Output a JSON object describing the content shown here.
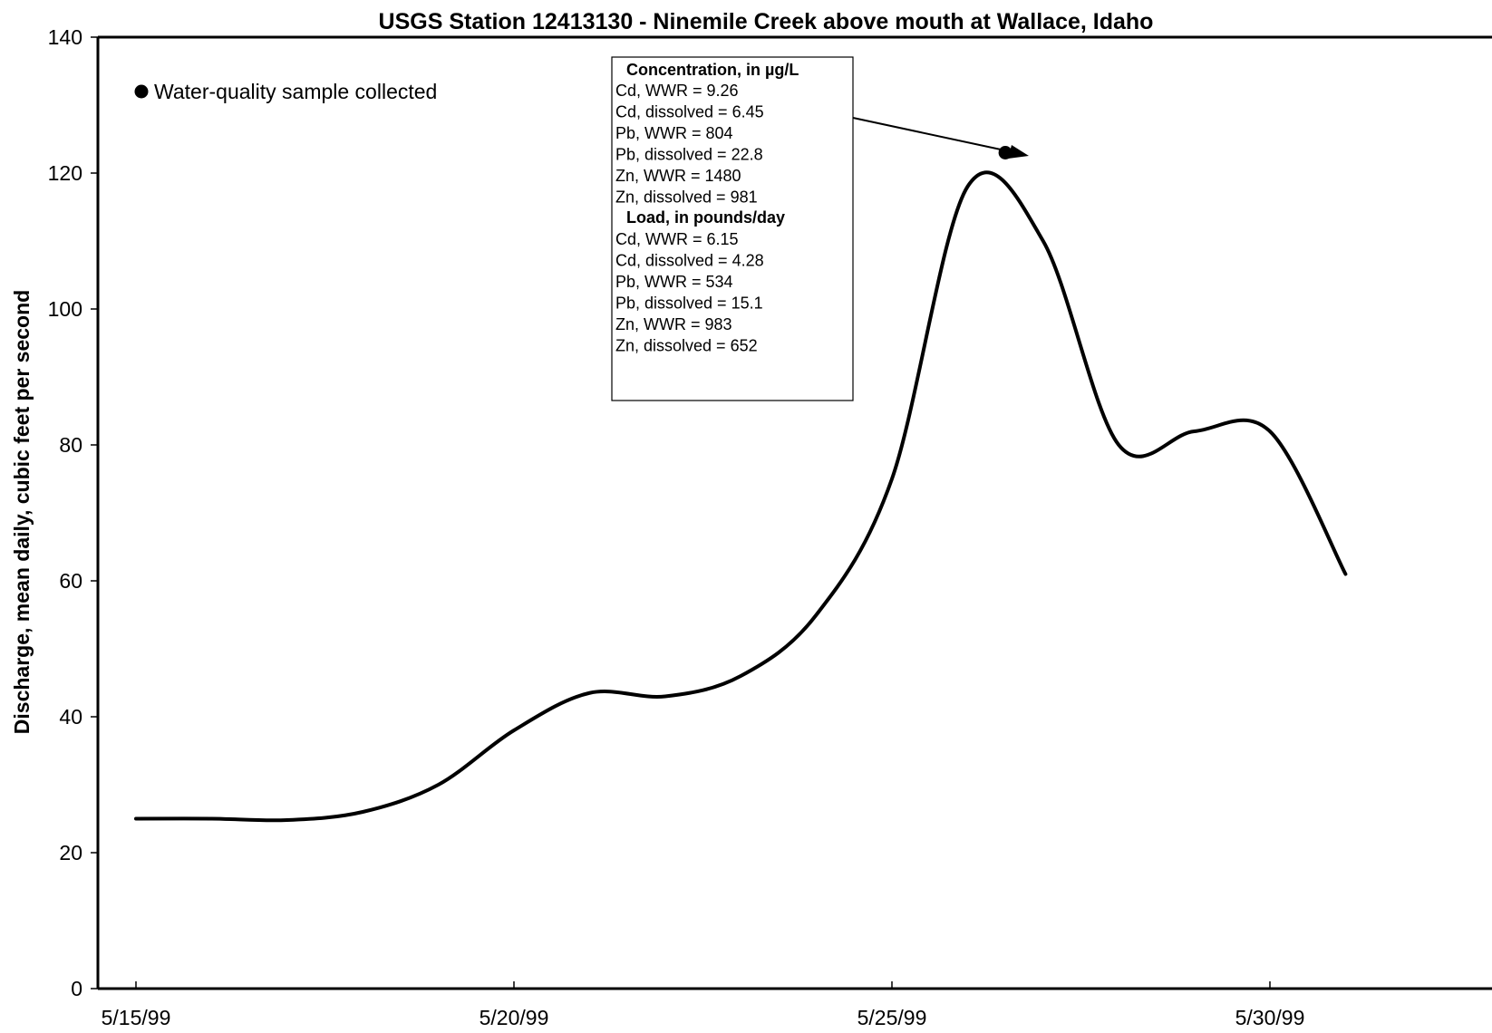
{
  "chart_data": {
    "type": "line",
    "title": "USGS Station 12413130 - Ninemile Creek above mouth at Wallace, Idaho",
    "xlabel": "",
    "ylabel": "Discharge, mean daily, cubic feet per second",
    "xlim": [
      "5/15/99",
      "5/31/99"
    ],
    "ylim": [
      0,
      140
    ],
    "yticks": [
      "0",
      "20",
      "40",
      "60",
      "80",
      "100",
      "120",
      "140"
    ],
    "xticks": [
      "5/15/99",
      "5/20/99",
      "5/25/99",
      "5/30/99"
    ],
    "grid": false,
    "series": [
      {
        "values": [
          {
            "x": "5/15/99",
            "y": 25
          },
          {
            "x": "5/16/99",
            "y": 25
          },
          {
            "x": "5/17/99",
            "y": 24.8
          },
          {
            "x": "5/18/99",
            "y": 26
          },
          {
            "x": "5/19/99",
            "y": 30
          },
          {
            "x": "5/20/99",
            "y": 38
          },
          {
            "x": "5/21/99",
            "y": 43.5
          },
          {
            "x": "5/22/99",
            "y": 43
          },
          {
            "x": "5/23/99",
            "y": 46
          },
          {
            "x": "5/24/99",
            "y": 55
          },
          {
            "x": "5/25/99",
            "y": 75
          },
          {
            "x": "5/26/99",
            "y": 118
          },
          {
            "x": "5/27/99",
            "y": 110
          },
          {
            "x": "5/28/99",
            "y": 80
          },
          {
            "x": "5/29/99",
            "y": 82
          },
          {
            "x": "5/30/99",
            "y": 82
          },
          {
            "x": "5/31/99",
            "y": 61
          }
        ]
      }
    ],
    "sample_points": [
      {
        "x": "5/26/99 12:00",
        "y": 123
      }
    ],
    "legend": {
      "label": "Water-quality sample collected",
      "placement": "top-left"
    },
    "annotation": {
      "concentration_heading": "Concentration, in µg/L",
      "concentration_lines": [
        "Cd, WWR = 9.26",
        "Cd, dissolved = 6.45",
        "Pb, WWR = 804",
        "Pb, dissolved = 22.8",
        "Zn, WWR = 1480",
        "Zn, dissolved = 981"
      ],
      "load_heading": "Load, in pounds/day",
      "load_lines": [
        "Cd, WWR = 6.15",
        "Cd, dissolved = 4.28",
        "Pb, WWR = 534",
        "Pb, dissolved = 15.1",
        "Zn, WWR = 983",
        "Zn, dissolved = 652"
      ]
    },
    "colors": {
      "line": "#000000",
      "axis": "#000000",
      "background": "#ffffff"
    }
  }
}
